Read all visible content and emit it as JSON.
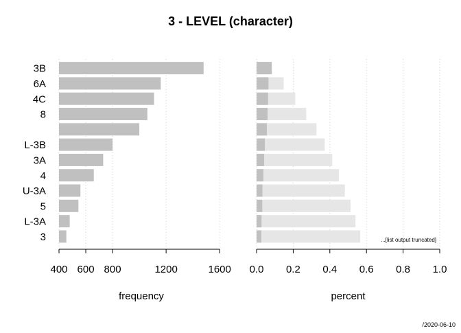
{
  "chart_data": {
    "type": "bar",
    "title": "3 - LEVEL (character)",
    "footer": "/2020-06-10",
    "truncation_note": "...[list output truncated]",
    "categories": [
      "3B",
      "6A",
      "4C",
      "8",
      "",
      "L-3B",
      "3A",
      "4",
      "U-3A",
      "5",
      "L-3A",
      "3"
    ],
    "panels": [
      {
        "name": "frequency",
        "xlabel": "frequency",
        "xlim": [
          400,
          1640
        ],
        "xticks": [
          400,
          600,
          800,
          1200,
          1600
        ],
        "grid": true,
        "bar_color": "#c0c0c0",
        "values": [
          1480,
          1160,
          1110,
          1060,
          1000,
          800,
          730,
          660,
          560,
          545,
          480,
          455
        ]
      },
      {
        "name": "percent",
        "xlabel": "percent",
        "xlim": [
          0,
          1
        ],
        "xticks": [
          0.0,
          0.2,
          0.4,
          0.6,
          0.8,
          1.0
        ],
        "tick_labels": [
          "0.0",
          "0.2",
          "0.4",
          "0.6",
          "0.8",
          "1.0"
        ],
        "grid": true,
        "series": [
          {
            "name": "percent",
            "color": "#c0c0c0",
            "values": [
              0.083,
              0.065,
              0.063,
              0.06,
              0.056,
              0.045,
              0.041,
              0.037,
              0.032,
              0.031,
              0.027,
              0.026
            ]
          },
          {
            "name": "cumulative percent",
            "color": "#e6e6e6",
            "values": [
              0.083,
              0.148,
              0.211,
              0.271,
              0.327,
              0.372,
              0.413,
              0.45,
              0.482,
              0.513,
              0.54,
              0.566
            ]
          }
        ]
      }
    ]
  }
}
